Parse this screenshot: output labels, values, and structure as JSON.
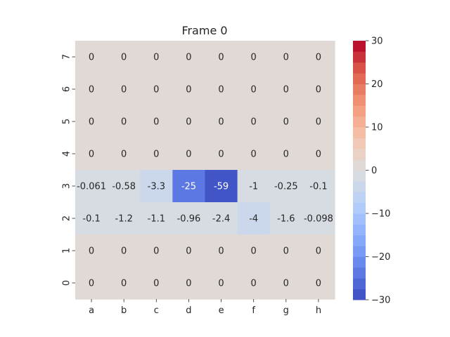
{
  "chart_data": {
    "type": "heatmap",
    "title": "Frame 0",
    "xlabel": "",
    "ylabel": "",
    "x_categories": [
      "a",
      "b",
      "c",
      "d",
      "e",
      "f",
      "g",
      "h"
    ],
    "y_categories": [
      "7",
      "6",
      "5",
      "4",
      "3",
      "2",
      "1",
      "0"
    ],
    "values": [
      [
        0,
        0,
        0,
        0,
        0,
        0,
        0,
        0
      ],
      [
        0,
        0,
        0,
        0,
        0,
        0,
        0,
        0
      ],
      [
        0,
        0,
        0,
        0,
        0,
        0,
        0,
        0
      ],
      [
        0,
        0,
        0,
        0,
        0,
        0,
        0,
        0
      ],
      [
        -0.061,
        -0.58,
        -3.3,
        -25,
        -59,
        -1,
        -0.25,
        -0.1
      ],
      [
        -0.1,
        -1.2,
        -1.1,
        -0.96,
        -2.4,
        -4,
        -1.6,
        -0.098
      ],
      [
        0,
        0,
        0,
        0,
        0,
        0,
        0,
        0
      ],
      [
        0,
        0,
        0,
        0,
        0,
        0,
        0,
        0
      ]
    ],
    "annotations": [
      [
        "0",
        "0",
        "0",
        "0",
        "0",
        "0",
        "0",
        "0"
      ],
      [
        "0",
        "0",
        "0",
        "0",
        "0",
        "0",
        "0",
        "0"
      ],
      [
        "0",
        "0",
        "0",
        "0",
        "0",
        "0",
        "0",
        "0"
      ],
      [
        "0",
        "0",
        "0",
        "0",
        "0",
        "0",
        "0",
        "0"
      ],
      [
        "-0.061",
        "-0.58",
        "-3.3",
        "-25",
        "-59",
        "-1",
        "-0.25",
        "-0.1"
      ],
      [
        "-0.1",
        "-1.2",
        "-1.1",
        "-0.96",
        "-2.4",
        "-4",
        "-1.6",
        "-0.098"
      ],
      [
        "0",
        "0",
        "0",
        "0",
        "0",
        "0",
        "0",
        "0"
      ],
      [
        "0",
        "0",
        "0",
        "0",
        "0",
        "0",
        "0",
        "0"
      ]
    ],
    "colormap": "coolwarm",
    "color_range": [
      -30,
      30
    ],
    "colorbar_ticks": [
      -30,
      -20,
      -10,
      0,
      10,
      20,
      30
    ],
    "colorbar_tick_labels": [
      "−30",
      "−20",
      "−10",
      "0",
      "10",
      "20",
      "30"
    ],
    "grid": false,
    "legend": "colorbar-right"
  }
}
